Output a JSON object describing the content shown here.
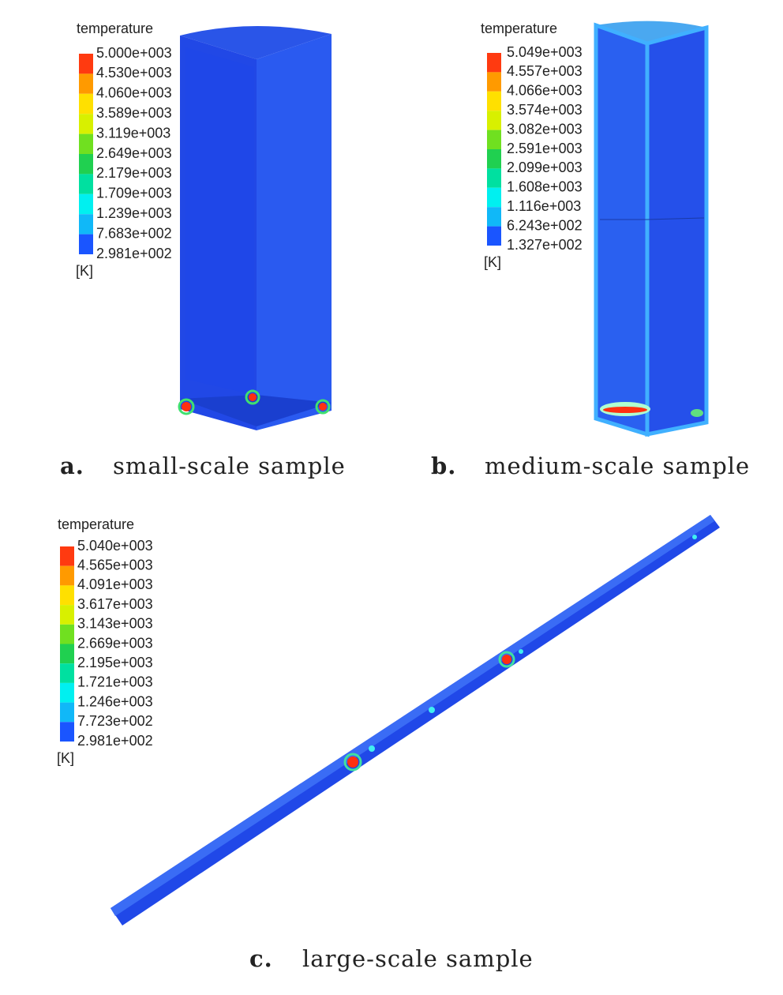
{
  "panels": [
    {
      "legend_title": "temperature",
      "unit": "[K]",
      "labels": [
        "5.000e+003",
        "4.530e+003",
        "4.060e+003",
        "3.589e+003",
        "3.119e+003",
        "2.649e+003",
        "2.179e+003",
        "1.709e+003",
        "1.239e+003",
        "7.683e+002",
        "2.981e+002"
      ],
      "caption_letter": "a.",
      "caption": "small-scale sample"
    },
    {
      "legend_title": "temperature",
      "unit": "[K]",
      "labels": [
        "5.049e+003",
        "4.557e+003",
        "4.066e+003",
        "3.574e+003",
        "3.082e+003",
        "2.591e+003",
        "2.099e+003",
        "1.608e+003",
        "1.116e+003",
        "6.243e+002",
        "1.327e+002"
      ],
      "caption_letter": "b.",
      "caption": "medium-scale sample"
    },
    {
      "legend_title": "temperature",
      "unit": "[K]",
      "labels": [
        "5.040e+003",
        "4.565e+003",
        "4.091e+003",
        "3.617e+003",
        "3.143e+003",
        "2.669e+003",
        "2.195e+003",
        "1.721e+003",
        "1.246e+003",
        "7.723e+002",
        "2.981e+002"
      ],
      "caption_letter": "c.",
      "caption": "large-scale sample"
    }
  ]
}
